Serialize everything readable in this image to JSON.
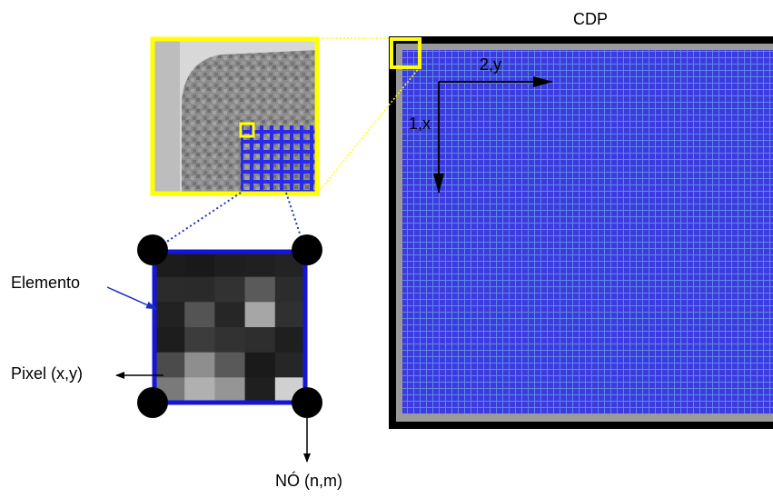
{
  "labels": {
    "cdp": "CDP",
    "axis_y": "2,y",
    "axis_x": "1,x",
    "element": "Elemento",
    "pixel": "Pixel (x,y)",
    "node": "NÓ (n,m)"
  }
}
